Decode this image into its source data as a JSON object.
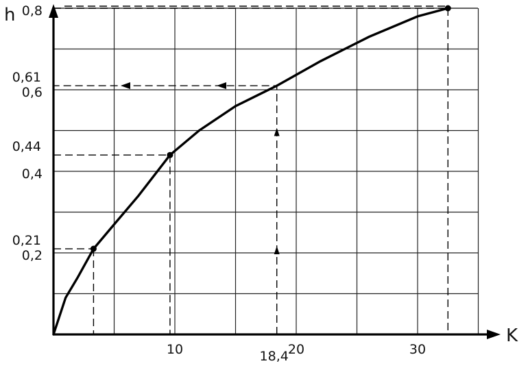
{
  "chart_data": {
    "type": "line",
    "xlabel": "K",
    "ylabel": "h",
    "xlim": [
      0,
      35
    ],
    "ylim": [
      0,
      0.8
    ],
    "x_ticks": [
      {
        "value": 10,
        "label": "10"
      },
      {
        "value": 20,
        "label": "20"
      },
      {
        "value": 30,
        "label": "30"
      }
    ],
    "y_ticks": [
      {
        "value": 0.2,
        "label": "0,2"
      },
      {
        "value": 0.4,
        "label": "0,4"
      },
      {
        "value": 0.6,
        "label": "0,6"
      },
      {
        "value": 0.8,
        "label": "0,8"
      }
    ],
    "grid": true,
    "series": [
      {
        "x": [
          0,
          1,
          2,
          3.3,
          5,
          7,
          9.6,
          12,
          15,
          18.4,
          22,
          26,
          30,
          32.5
        ],
        "y": [
          0,
          0.09,
          0.14,
          0.21,
          0.27,
          0.34,
          0.44,
          0.5,
          0.56,
          0.61,
          0.67,
          0.73,
          0.78,
          0.8
        ]
      }
    ],
    "marked_points": [
      {
        "x": 3.3,
        "y": 0.21
      },
      {
        "x": 9.6,
        "y": 0.44
      },
      {
        "x": 32.5,
        "y": 0.8
      }
    ],
    "annotations": [
      {
        "text": "0,21",
        "y": 0.21
      },
      {
        "text": "0,44",
        "y": 0.44
      },
      {
        "text": "0,61",
        "y": 0.61
      },
      {
        "text": "18,4",
        "x": 18.4
      }
    ],
    "reading": {
      "x": 18.4,
      "y": 0.61
    }
  }
}
